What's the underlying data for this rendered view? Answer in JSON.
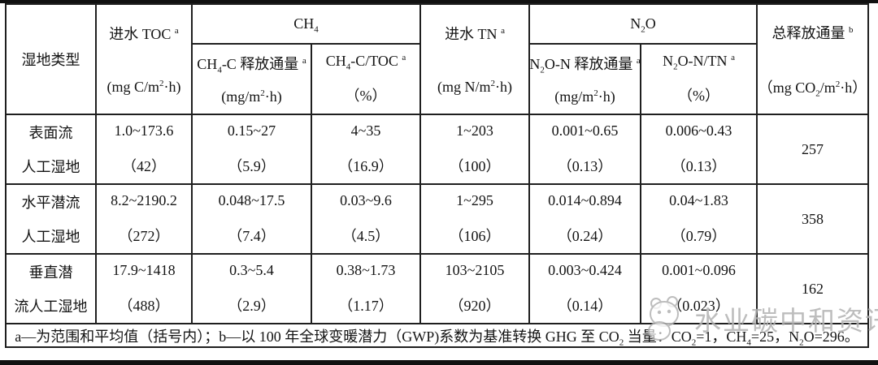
{
  "table": {
    "header": {
      "wetland_type": "湿地类型",
      "inflow_toc_title": "进水 TOC <sup>a</sup>",
      "inflow_toc_unit": "(mg C/m<sup>2</sup>·h)",
      "ch4_group": "CH<sub>4</sub>",
      "ch4_flux_title": "CH<sub>4</sub>-C 释放通量 <sup>a</sup>",
      "ch4_flux_unit": "(mg/m<sup>2</sup>·h)",
      "ch4_ratio_title": "CH<sub>4</sub>-C/TOC <sup>a</sup>",
      "ch4_ratio_unit": "（%）",
      "inflow_tn_title": "进水 TN <sup>a</sup>",
      "inflow_tn_unit": "(mg N/m<sup>2</sup>·h)",
      "n2o_group": "N<sub>2</sub>O",
      "n2o_flux_title": "N<sub>2</sub>O-N 释放通量 <sup>a</sup>",
      "n2o_flux_unit": "(mg/m<sup>2</sup>·h)",
      "n2o_ratio_title": "N<sub>2</sub>O-N/TN <sup>a</sup>",
      "n2o_ratio_unit": "（%）",
      "total_title": "总释放通量 <sup>b</sup>",
      "total_unit": "（mg CO<sub>2</sub>/m<sup>2</sup>·h）"
    },
    "rows": [
      {
        "type1": "表面流",
        "type2": "人工湿地",
        "toc_range": "1.0~173.6",
        "toc_avg": "（42）",
        "ch4_flux_range": "0.15~27",
        "ch4_flux_avg": "（5.9）",
        "ch4_ratio_range": "4~35",
        "ch4_ratio_avg": "（16.9）",
        "tn_range": "1~203",
        "tn_avg": "（100）",
        "n2o_flux_range": "0.001~0.65",
        "n2o_flux_avg": "（0.13）",
        "n2o_ratio_range": "0.006~0.43",
        "n2o_ratio_avg": "（0.13）",
        "total": "257"
      },
      {
        "type1": "水平潜流",
        "type2": "人工湿地",
        "toc_range": "8.2~2190.2",
        "toc_avg": "（272）",
        "ch4_flux_range": "0.048~17.5",
        "ch4_flux_avg": "（7.4）",
        "ch4_ratio_range": "0.03~9.6",
        "ch4_ratio_avg": "（4.5）",
        "tn_range": "1~295",
        "tn_avg": "（106）",
        "n2o_flux_range": "0.014~0.894",
        "n2o_flux_avg": "（0.24）",
        "n2o_ratio_range": "0.04~1.83",
        "n2o_ratio_avg": "（0.79）",
        "total": "358"
      },
      {
        "type1": "垂直潜",
        "type2": "流人工湿地",
        "toc_range": "17.9~1418",
        "toc_avg": "（488）",
        "ch4_flux_range": "0.3~5.4",
        "ch4_flux_avg": "（2.9）",
        "ch4_ratio_range": "0.38~1.73",
        "ch4_ratio_avg": "（1.17）",
        "tn_range": "103~2105",
        "tn_avg": "（920）",
        "n2o_flux_range": "0.003~0.424",
        "n2o_flux_avg": "（0.14）",
        "n2o_ratio_range": "0.001~0.096",
        "n2o_ratio_avg": "（0.023）",
        "total": "162"
      }
    ],
    "footnote": "a—为范围和平均值（括号内）；b—以 100 年全球变暖潜力（GWP)系数为基准转换 GHG 至 CO<sub>2</sub> 当量：CO<sub>2</sub>=1，CH<sub>4</sub>=25，N<sub>2</sub>O=296。"
  },
  "watermark": {
    "text": "水业碳中和资讯",
    "color": "#b2b2b2"
  }
}
